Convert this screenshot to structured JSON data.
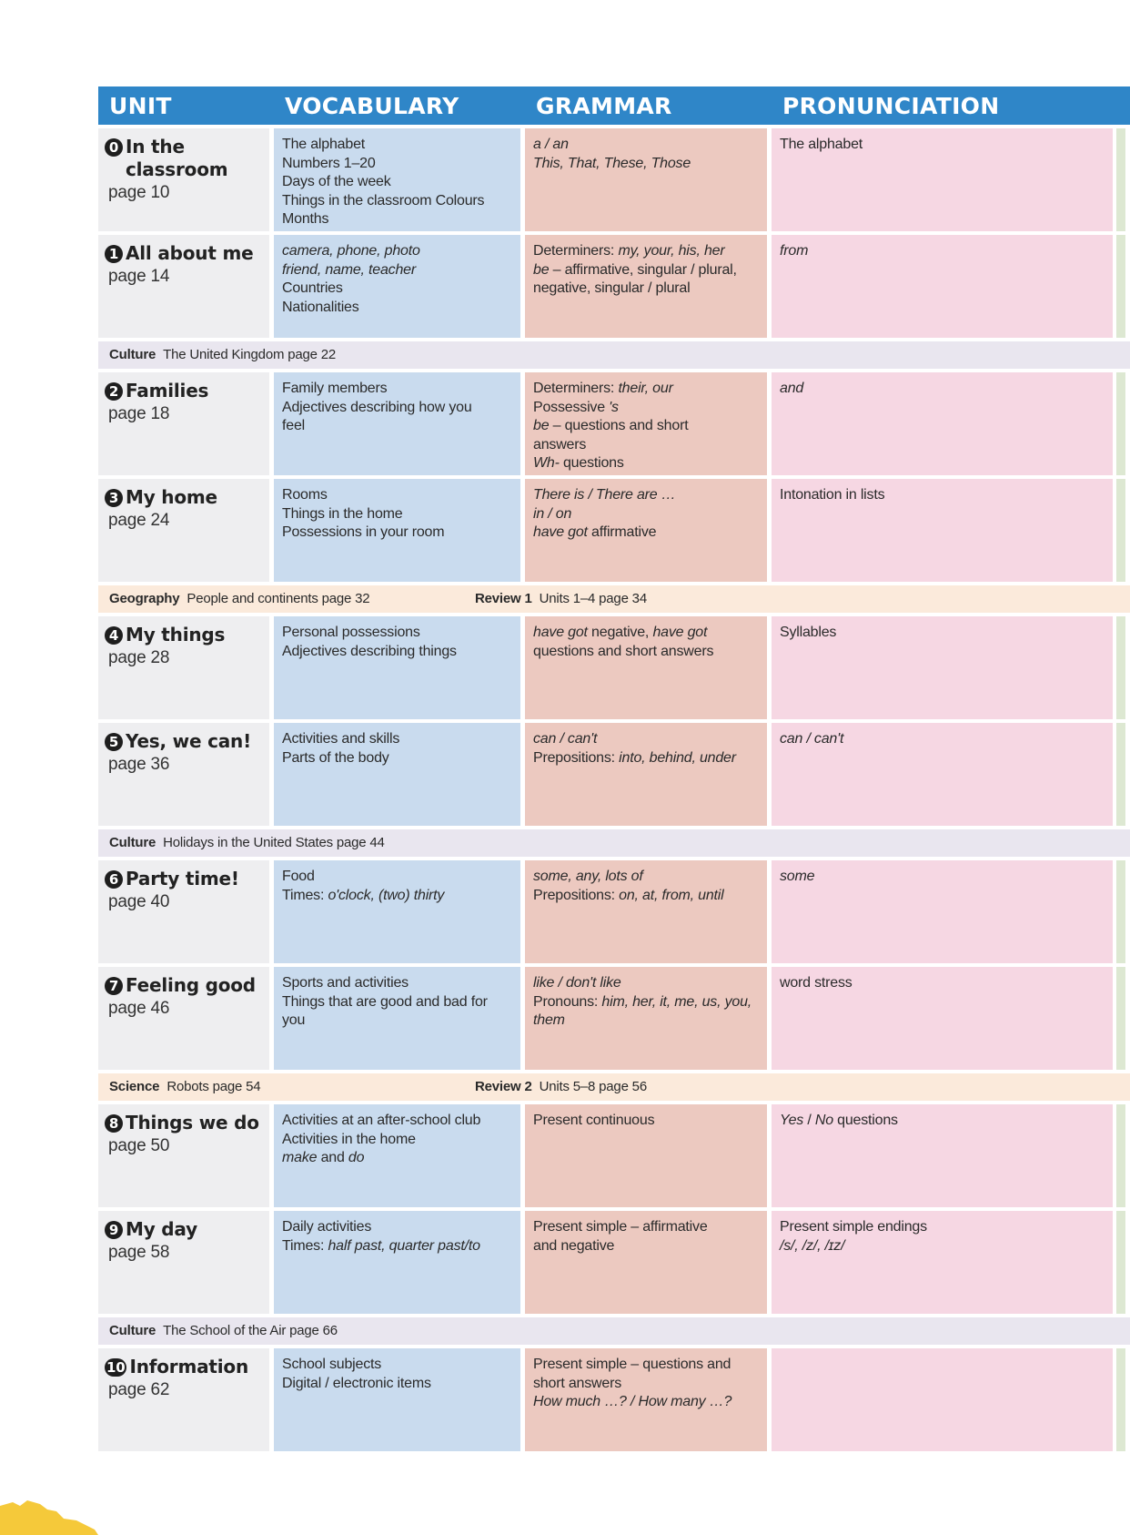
{
  "header": {
    "unit": "UNIT",
    "vocabulary": "VOCABULARY",
    "grammar": "GRAMMAR",
    "pronunciation": "PRONUNCIATION"
  },
  "units": [
    {
      "number": "0",
      "title": "In the classroom",
      "page": "page 10",
      "vocabulary": [
        [
          {
            "t": "The alphabet"
          }
        ],
        [
          {
            "t": "Numbers 1–20"
          }
        ],
        [
          {
            "t": "Days of the week"
          }
        ],
        [
          {
            "t": "Things in the classroom Colours"
          }
        ],
        [
          {
            "t": "Months"
          }
        ]
      ],
      "grammar": [
        [
          {
            "t": "a / an",
            "i": true
          }
        ],
        [
          {
            "t": "This, That, These, Those",
            "i": true
          }
        ]
      ],
      "pronunciation": [
        [
          {
            "t": "The alphabet"
          }
        ]
      ]
    },
    {
      "number": "1",
      "title": "All about me",
      "page": "page 14",
      "vocabulary": [
        [
          {
            "t": "camera, phone, photo",
            "i": true
          }
        ],
        [
          {
            "t": "friend, name, teacher",
            "i": true
          }
        ],
        [
          {
            "t": "Countries"
          }
        ],
        [
          {
            "t": "Nationalities"
          }
        ]
      ],
      "grammar": [
        [
          {
            "t": "Determiners: "
          },
          {
            "t": "my, your, his, her",
            "i": true
          }
        ],
        [
          {
            "t": "be",
            "i": true
          },
          {
            "t": " – affirmative, singular / plural,"
          }
        ],
        [
          {
            "t": "negative, singular / plural"
          }
        ]
      ],
      "pronunciation": [
        [
          {
            "t": "from",
            "i": true
          }
        ]
      ]
    },
    {
      "number": "2",
      "title": "Families",
      "page": "page 18",
      "vocabulary": [
        [
          {
            "t": "Family members"
          }
        ],
        [
          {
            "t": "Adjectives describing how you"
          }
        ],
        [
          {
            "t": "feel"
          }
        ]
      ],
      "grammar": [
        [
          {
            "t": "Determiners: "
          },
          {
            "t": "their, our",
            "i": true
          }
        ],
        [
          {
            "t": "Possessive "
          },
          {
            "t": "'s",
            "i": true
          }
        ],
        [
          {
            "t": "be",
            "i": true
          },
          {
            "t": " – questions and short"
          }
        ],
        [
          {
            "t": "answers"
          }
        ],
        [
          {
            "t": "Wh-",
            "i": true
          },
          {
            "t": " questions"
          }
        ]
      ],
      "pronunciation": [
        [
          {
            "t": "and",
            "i": true
          }
        ]
      ]
    },
    {
      "number": "3",
      "title": "My home",
      "page": "page 24",
      "vocabulary": [
        [
          {
            "t": "Rooms"
          }
        ],
        [
          {
            "t": "Things in the home"
          }
        ],
        [
          {
            "t": "Possessions in your room"
          }
        ]
      ],
      "grammar": [
        [
          {
            "t": "There is / There are …",
            "i": true
          }
        ],
        [
          {
            "t": "in / on",
            "i": true
          }
        ],
        [
          {
            "t": "have got",
            "i": true
          },
          {
            "t": " affirmative"
          }
        ]
      ],
      "pronunciation": [
        [
          {
            "t": "Intonation in lists"
          }
        ]
      ]
    },
    {
      "number": "4",
      "title": "My things",
      "page": "page 28",
      "vocabulary": [
        [
          {
            "t": "Personal possessions"
          }
        ],
        [
          {
            "t": "Adjectives describing things"
          }
        ]
      ],
      "grammar": [
        [
          {
            "t": "have got",
            "i": true
          },
          {
            "t": " negative, "
          },
          {
            "t": "have got",
            "i": true
          }
        ],
        [
          {
            "t": "questions and short answers"
          }
        ]
      ],
      "pronunciation": [
        [
          {
            "t": "Syllables"
          }
        ]
      ]
    },
    {
      "number": "5",
      "title": "Yes, we can!",
      "page": "page 36",
      "vocabulary": [
        [
          {
            "t": "Activities and skills"
          }
        ],
        [
          {
            "t": "Parts of the body"
          }
        ]
      ],
      "grammar": [
        [
          {
            "t": "can / can't",
            "i": true
          }
        ],
        [
          {
            "t": "Prepositions: "
          },
          {
            "t": "into, behind, under",
            "i": true
          }
        ]
      ],
      "pronunciation": [
        [
          {
            "t": "can / can't",
            "i": true
          }
        ]
      ]
    },
    {
      "number": "6",
      "title": "Party time!",
      "page": "page 40",
      "vocabulary": [
        [
          {
            "t": "Food"
          }
        ],
        [
          {
            "t": "Times: "
          },
          {
            "t": "o'clock, (two) thirty",
            "i": true
          }
        ]
      ],
      "grammar": [
        [
          {
            "t": "some, any, lots of",
            "i": true
          }
        ],
        [
          {
            "t": "Prepositions: "
          },
          {
            "t": "on, at, from, until",
            "i": true
          }
        ]
      ],
      "pronunciation": [
        [
          {
            "t": "some",
            "i": true
          }
        ]
      ]
    },
    {
      "number": "7",
      "title": "Feeling good",
      "page": "page 46",
      "vocabulary": [
        [
          {
            "t": "Sports and activities"
          }
        ],
        [
          {
            "t": "Things that are good and bad for"
          }
        ],
        [
          {
            "t": "you"
          }
        ]
      ],
      "grammar": [
        [
          {
            "t": "like / don't like",
            "i": true
          }
        ],
        [
          {
            "t": "Pronouns: "
          },
          {
            "t": "him, her, it, me, us, you,",
            "i": true
          }
        ],
        [
          {
            "t": "them",
            "i": true
          }
        ]
      ],
      "pronunciation": [
        [
          {
            "t": "word stress"
          }
        ]
      ]
    },
    {
      "number": "8",
      "title": "Things we do",
      "page": "page 50",
      "vocabulary": [
        [
          {
            "t": "Activities at an after-school club"
          }
        ],
        [
          {
            "t": "Activities in the home"
          }
        ],
        [
          {
            "t": "make",
            "i": true
          },
          {
            "t": " and "
          },
          {
            "t": "do",
            "i": true
          }
        ]
      ],
      "grammar": [
        [
          {
            "t": "Present continuous"
          }
        ]
      ],
      "pronunciation": [
        [
          {
            "t": "Yes",
            "i": true
          },
          {
            "t": " / "
          },
          {
            "t": "No",
            "i": true
          },
          {
            "t": " questions"
          }
        ]
      ]
    },
    {
      "number": "9",
      "title": "My day",
      "page": "page 58",
      "vocabulary": [
        [
          {
            "t": "Daily activities"
          }
        ],
        [
          {
            "t": "Times: "
          },
          {
            "t": "half past, quarter past/to",
            "i": true
          }
        ]
      ],
      "grammar": [
        [
          {
            "t": "Present simple – affirmative"
          }
        ],
        [
          {
            "t": "and negative"
          }
        ]
      ],
      "pronunciation": [
        [
          {
            "t": "Present simple endings"
          }
        ],
        [
          {
            "t": "/s/, /z/, /ɪz/",
            "i": true
          }
        ]
      ]
    },
    {
      "number": "10",
      "title": "Information",
      "page": "page 62",
      "vocabulary": [
        [
          {
            "t": "School subjects"
          }
        ],
        [
          {
            "t": "Digital / electronic items"
          }
        ]
      ],
      "grammar": [
        [
          {
            "t": "Present simple – questions and"
          }
        ],
        [
          {
            "t": "short answers"
          }
        ],
        [
          {
            "t": "How much …? / How many …?",
            "i": true
          }
        ]
      ],
      "pronunciation": []
    }
  ],
  "bands": [
    {
      "after": 2,
      "kind": "culture",
      "items": [
        {
          "label": "Culture",
          "text": "The United Kingdom page 22"
        }
      ]
    },
    {
      "after": 4,
      "kind": "cross",
      "items": [
        {
          "label": "Geography",
          "text": "People and continents page 32"
        },
        {
          "label": "Review 1",
          "text": "Units 1–4 page 34"
        }
      ]
    },
    {
      "after": 6,
      "kind": "culture",
      "items": [
        {
          "label": "Culture",
          "text": "Holidays in the United States page 44"
        }
      ]
    },
    {
      "after": 8,
      "kind": "cross",
      "items": [
        {
          "label": "Science",
          "text": "Robots page 54"
        },
        {
          "label": "Review 2",
          "text": "Units 5–8 page 56"
        }
      ]
    },
    {
      "after": 10,
      "kind": "culture",
      "items": [
        {
          "label": "Culture",
          "text": "The School of the Air page 66"
        }
      ]
    }
  ],
  "colors": {
    "header": "#2f86c8",
    "unit_cell": "#eeeef0",
    "vocabulary_cell": "#c9dbee",
    "grammar_cell": "#ecc9c0",
    "pronunciation_cell": "#f6d7e3",
    "culture_band": "#e9e6ef",
    "cross_band": "#fbeadb",
    "splash": "#f5c93a"
  }
}
